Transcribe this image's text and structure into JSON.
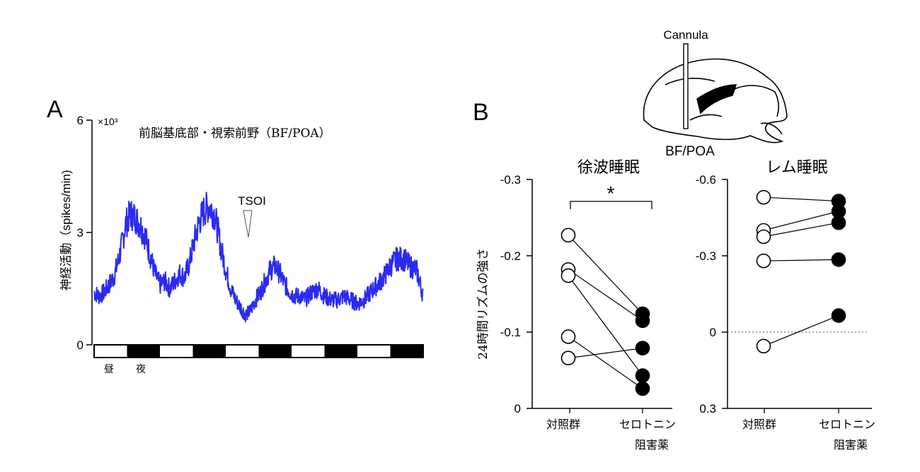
{
  "panel_a": {
    "letter": "A",
    "region_label": "前脳基底部・視索前野（BF/POA）",
    "ylabel": "神経活動（spikes/min)",
    "y_multiplier": "×10³",
    "annotation": "TSOI",
    "day_label": "昼",
    "night_label": "夜",
    "light_dark_blocks": [
      "light",
      "dark",
      "light",
      "dark",
      "light",
      "dark",
      "light",
      "dark",
      "light",
      "dark"
    ],
    "colors": {
      "trace": "#2b2bf0",
      "axis": "#000000"
    }
  },
  "panel_b": {
    "letter": "B",
    "cannula_label": "Cannula",
    "target_label": "BF/POA",
    "ylabel": "24時間リズムの強さ",
    "control_label": "対照群",
    "drug_label_line1": "セロトニン",
    "drug_label_line2": "阻害薬",
    "significance": "*"
  },
  "chart_data": [
    {
      "type": "line",
      "title": "前脳基底部・視索前野（BF/POA）",
      "ylabel": "神経活動（spikes/min)",
      "y_unit_multiplier": "×10³",
      "ylim": [
        0,
        6
      ],
      "yticks": [
        0,
        3,
        6
      ],
      "ytick_labels": [
        "0",
        "3",
        "6"
      ],
      "xlim": [
        0,
        10
      ],
      "x_unit": "light/dark block (5 days)",
      "series": [
        {
          "x": [
            0,
            0.15,
            0.3,
            0.45,
            0.6,
            0.75,
            0.85,
            0.95,
            1.1,
            1.25,
            1.4,
            1.55,
            1.7,
            1.85,
            2.0,
            2.15,
            2.3,
            2.45,
            2.6,
            2.75,
            2.9,
            3.05,
            3.2,
            3.35,
            3.5,
            3.65,
            3.75,
            3.85,
            4.0,
            4.15,
            4.3,
            4.45,
            4.6,
            4.75,
            4.9,
            5.05,
            5.2,
            5.35,
            5.5,
            5.65,
            5.8,
            5.95,
            6.1,
            6.25,
            6.4,
            6.6,
            6.8,
            7.0,
            7.2,
            7.4,
            7.6,
            7.8,
            8.0,
            8.2,
            8.4,
            8.6,
            8.8,
            9.0,
            9.2,
            9.4,
            9.6,
            9.8,
            10.0
          ],
          "values": [
            1.4,
            1.3,
            1.4,
            1.6,
            1.8,
            2.3,
            2.7,
            3.2,
            3.5,
            3.4,
            3.2,
            2.9,
            2.4,
            1.9,
            1.6,
            1.7,
            1.5,
            1.7,
            1.9,
            1.8,
            2.2,
            2.8,
            3.3,
            3.6,
            3.7,
            3.5,
            3.1,
            2.6,
            2.0,
            1.5,
            1.2,
            1.0,
            0.8,
            0.9,
            1.2,
            1.4,
            1.7,
            2.0,
            2.1,
            1.9,
            1.6,
            1.4,
            1.3,
            1.3,
            1.2,
            1.4,
            1.5,
            1.3,
            1.2,
            1.2,
            1.3,
            1.2,
            1.1,
            1.2,
            1.4,
            1.6,
            1.8,
            2.1,
            2.3,
            2.3,
            2.1,
            2.0,
            1.3
          ]
        }
      ],
      "annotations": [
        {
          "text": "TSOI",
          "x": 4.6,
          "y": 3.6
        }
      ]
    },
    {
      "type": "scatter",
      "title": "徐波睡眠",
      "ylabel": "24時間リズムの強さ",
      "ylim": [
        0,
        -0.3
      ],
      "yticks": [
        0,
        -0.1,
        -0.2,
        -0.3
      ],
      "ytick_labels": [
        "0",
        "-0.1",
        "-0.2",
        "-0.3"
      ],
      "categories": [
        "対照群",
        "セロトニン阻害薬"
      ],
      "series": [
        {
          "name": "対照群",
          "marker": "open",
          "values": [
            -0.227,
            -0.182,
            -0.174,
            -0.094,
            -0.066
          ]
        },
        {
          "name": "セロトニン阻害薬",
          "marker": "filled",
          "values": [
            -0.124,
            -0.115,
            -0.079,
            -0.043,
            -0.026
          ]
        }
      ],
      "pairs": [
        [
          -0.227,
          -0.124
        ],
        [
          -0.182,
          -0.115
        ],
        [
          -0.174,
          -0.043
        ],
        [
          -0.094,
          -0.026
        ],
        [
          -0.066,
          -0.079
        ]
      ],
      "significance": "*"
    },
    {
      "type": "scatter",
      "title": "レム睡眠",
      "ylim": [
        0.3,
        -0.6
      ],
      "yticks": [
        0.3,
        0,
        -0.3,
        -0.6
      ],
      "ytick_labels": [
        "0.3",
        "0",
        "-0.3",
        "-0.6"
      ],
      "reference_line": 0,
      "categories": [
        "対照群",
        "セロトニン阻害薬"
      ],
      "series": [
        {
          "name": "対照群",
          "marker": "open",
          "values": [
            -0.53,
            -0.4,
            -0.375,
            -0.28,
            0.055
          ]
        },
        {
          "name": "セロトニン阻害薬",
          "marker": "filled",
          "values": [
            -0.515,
            -0.475,
            -0.43,
            -0.285,
            -0.065
          ]
        }
      ],
      "pairs": [
        [
          -0.53,
          -0.515
        ],
        [
          -0.4,
          -0.475
        ],
        [
          -0.375,
          -0.43
        ],
        [
          -0.28,
          -0.285
        ],
        [
          0.055,
          -0.065
        ]
      ]
    }
  ]
}
